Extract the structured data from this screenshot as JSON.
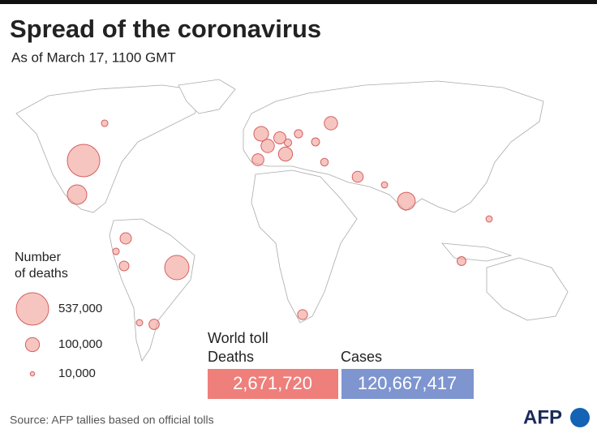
{
  "header": {
    "title": "Spread of the coronavirus",
    "subtitle": "As of March 17, 1100 GMT"
  },
  "map": {
    "bubbles": [
      537000,
      193000,
      300000,
      160000,
      110000,
      100000,
      90000,
      90000,
      75000,
      72000,
      65000,
      48000,
      54000,
      50000,
      62000,
      40000,
      35000,
      33000,
      22000,
      21000,
      30000,
      20000,
      22000,
      20000,
      28000
    ]
  },
  "legend": {
    "title_line1": "Number",
    "title_line2": "of deaths",
    "items": [
      {
        "value": 537000,
        "label": "537,000"
      },
      {
        "value": 100000,
        "label": "100,000"
      },
      {
        "value": 10000,
        "label": "10,000"
      }
    ]
  },
  "totals": {
    "heading": "World toll",
    "deaths_label": "Deaths",
    "deaths": "2,671,720",
    "cases_label": "Cases",
    "cases": "120,667,417"
  },
  "footer": {
    "source": "Source: AFP tallies based on official tolls",
    "logo": "AFP"
  }
}
